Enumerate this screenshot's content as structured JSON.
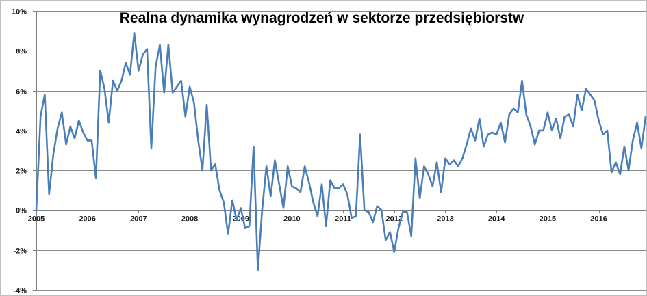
{
  "chart_data": {
    "type": "line",
    "title": "Realna dynamika wynagrodzeń w sektorze przedsiębiorstw",
    "xlabel": "",
    "ylabel": "",
    "x_tick_labels": [
      "2005",
      "2006",
      "2007",
      "2008",
      "2009",
      "2010",
      "2011",
      "2012",
      "2013",
      "2014",
      "2015",
      "2016"
    ],
    "y_tick_labels": [
      "10%",
      "8%",
      "6%",
      "4%",
      "2%",
      "0%",
      "-2%",
      "-4%"
    ],
    "y_ticks": [
      10,
      8,
      6,
      4,
      2,
      0,
      -2,
      -4
    ],
    "ylim": [
      -4,
      10
    ],
    "xlim": [
      "2005-01",
      "2016-12"
    ],
    "grid": true,
    "legend": "none",
    "line_color": "#4a7ebb",
    "series": [
      {
        "x": [
          "2005-01",
          "2005-02",
          "2005-03",
          "2005-04",
          "2005-05",
          "2005-06",
          "2005-07",
          "2005-08",
          "2005-09",
          "2005-10",
          "2005-11",
          "2005-12",
          "2006-01",
          "2006-02",
          "2006-03",
          "2006-04",
          "2006-05",
          "2006-06",
          "2006-07",
          "2006-08",
          "2006-09",
          "2006-10",
          "2006-11",
          "2006-12",
          "2007-01",
          "2007-02",
          "2007-03",
          "2007-04",
          "2007-05",
          "2007-06",
          "2007-07",
          "2007-08",
          "2007-09",
          "2007-10",
          "2007-11",
          "2007-12",
          "2008-01",
          "2008-02",
          "2008-03",
          "2008-04",
          "2008-05",
          "2008-06",
          "2008-07",
          "2008-08",
          "2008-09",
          "2008-10",
          "2008-11",
          "2008-12",
          "2009-01",
          "2009-02",
          "2009-03",
          "2009-04",
          "2009-05",
          "2009-06",
          "2009-07",
          "2009-08",
          "2009-09",
          "2009-10",
          "2009-11",
          "2009-12",
          "2010-01",
          "2010-02",
          "2010-03",
          "2010-04",
          "2010-05",
          "2010-06",
          "2010-07",
          "2010-08",
          "2010-09",
          "2010-10",
          "2010-11",
          "2010-12",
          "2011-01",
          "2011-02",
          "2011-03",
          "2011-04",
          "2011-05",
          "2011-06",
          "2011-07",
          "2011-08",
          "2011-09",
          "2011-10",
          "2011-11",
          "2011-12",
          "2012-01",
          "2012-02",
          "2012-03",
          "2012-04",
          "2012-05",
          "2012-06",
          "2012-07",
          "2012-08",
          "2012-09",
          "2012-10",
          "2012-11",
          "2012-12",
          "2013-01",
          "2013-02",
          "2013-03",
          "2013-04",
          "2013-05",
          "2013-06",
          "2013-07",
          "2013-08",
          "2013-09",
          "2013-10",
          "2013-11",
          "2013-12",
          "2014-01",
          "2014-02",
          "2014-03",
          "2014-04",
          "2014-05",
          "2014-06",
          "2014-07",
          "2014-08",
          "2014-09",
          "2014-10",
          "2014-11",
          "2014-12",
          "2015-01",
          "2015-02",
          "2015-03",
          "2015-04",
          "2015-05",
          "2015-06",
          "2015-07",
          "2015-08",
          "2015-09",
          "2015-10",
          "2015-11",
          "2015-12",
          "2016-01",
          "2016-02",
          "2016-03",
          "2016-04",
          "2016-05",
          "2016-06",
          "2016-07",
          "2016-08",
          "2016-09",
          "2016-10",
          "2016-11",
          "2016-12"
        ],
        "values": [
          0.0,
          4.7,
          5.8,
          0.8,
          2.8,
          4.1,
          4.9,
          3.3,
          4.2,
          3.6,
          4.5,
          3.9,
          3.5,
          3.5,
          1.6,
          7.0,
          6.1,
          4.4,
          6.5,
          6.0,
          6.5,
          7.4,
          6.8,
          8.9,
          7.0,
          7.8,
          8.1,
          3.1,
          7.2,
          8.3,
          5.9,
          8.3,
          5.9,
          6.2,
          6.5,
          4.7,
          6.2,
          5.4,
          3.5,
          2.0,
          5.3,
          2.0,
          2.3,
          1.0,
          0.4,
          -1.2,
          0.5,
          -0.5,
          0.1,
          -0.9,
          -0.8,
          3.2,
          -3.0,
          0.0,
          2.2,
          0.7,
          2.5,
          1.3,
          0.1,
          2.2,
          1.2,
          1.1,
          0.9,
          2.2,
          1.4,
          0.4,
          -0.3,
          1.3,
          -0.8,
          1.5,
          1.1,
          1.1,
          1.3,
          0.8,
          -0.4,
          -0.3,
          3.8,
          0.0,
          -0.1,
          -0.6,
          0.2,
          0.0,
          -1.5,
          -1.1,
          -2.1,
          -0.9,
          -0.1,
          -0.1,
          -1.3,
          2.6,
          0.6,
          2.2,
          1.8,
          1.2,
          2.4,
          0.9,
          2.6,
          2.3,
          2.5,
          2.2,
          2.6,
          3.3,
          4.1,
          3.5,
          4.6,
          3.2,
          3.8,
          3.9,
          3.8,
          4.4,
          3.4,
          4.8,
          5.1,
          4.9,
          6.5,
          4.8,
          4.2,
          3.3,
          4.0,
          4.0,
          4.9,
          4.0,
          4.6,
          3.6,
          4.7,
          4.8,
          4.2,
          5.8,
          5.0,
          6.1,
          5.8,
          5.5,
          4.5,
          3.8,
          4.0,
          1.9,
          2.4,
          1.8,
          3.2,
          2.0,
          3.5,
          4.4,
          3.1,
          4.7
        ]
      }
    ]
  }
}
